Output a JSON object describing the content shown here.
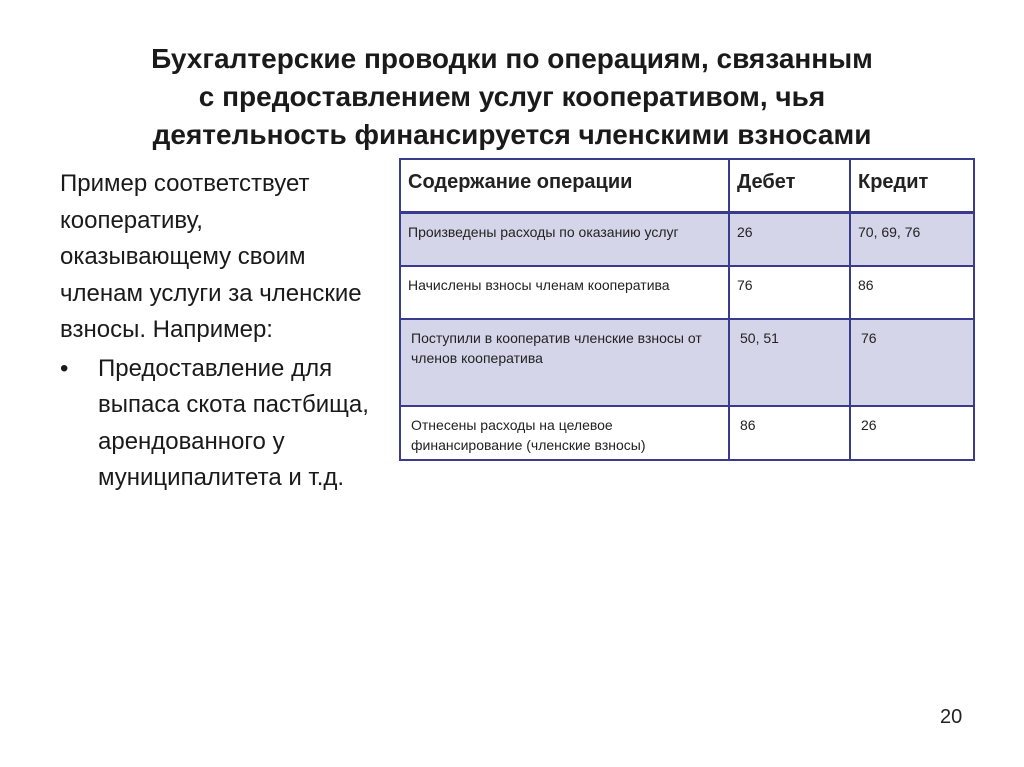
{
  "title": [
    "Бухгалтерские проводки по операциям, связанным",
    "с предоставлением услуг кооперативом, чья",
    "деятельность финансируется членскими взносами"
  ],
  "left": {
    "paragraph": "Пример соответствует кооперативу, оказывающему своим членам услуги за членские взносы. Например:",
    "bullets": [
      "Предоставление для выпаса скота пастбища, арендованного у муниципалитета и т.д."
    ],
    "bullet_symbol": "•"
  },
  "table": {
    "headers": [
      "Содержание операции",
      "Дебет",
      "Кредит"
    ],
    "rows": [
      [
        "Произведены расходы по оказанию услуг",
        "26",
        "70, 69, 76"
      ],
      [
        "Начислены взносы членам кооператива",
        "76",
        "86"
      ],
      [
        "Поступили в кооператив членские взносы от членов кооператива",
        "50, 51",
        "76"
      ],
      [
        "Отнесены расходы на целевое финансирование (членские взносы)",
        "86",
        "26"
      ]
    ],
    "shaded_color": "#d5d5e9",
    "border_color": "#3b3b8e"
  },
  "page_number": "20"
}
